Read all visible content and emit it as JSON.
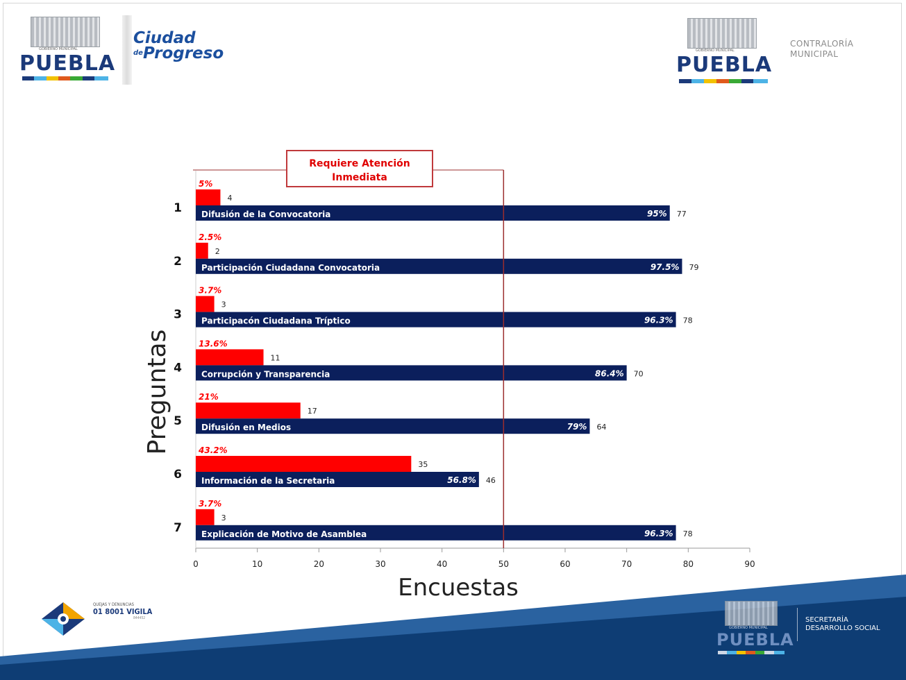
{
  "colors": {
    "red": "#ff0000",
    "navy": "#0b1f5c",
    "annotation_red": "#e00000",
    "annotation_border": "#c0393b",
    "vline": "#9b2d2d",
    "footer_blue": "#0e3d74"
  },
  "header": {
    "left_logo": {
      "gob": "GOBIERNO MUNICIPAL",
      "name": "PUEBLA"
    },
    "slogan": {
      "line1": "Ciudad",
      "de": "de",
      "line2": "Progreso"
    },
    "right_logo": {
      "gob": "GOBIERNO MUNICIPAL",
      "name": "PUEBLA"
    },
    "contraloria": {
      "line1": "CONTRALORÍA",
      "line2": "MUNICIPAL"
    }
  },
  "footer": {
    "hotline": {
      "small": "QUEJAS Y DENUNCIAS",
      "number": "01 8001 VIGILA",
      "sub": "844452"
    },
    "logo": {
      "gob": "GOBIERNO MUNICIPAL",
      "name": "PUEBLA"
    },
    "secretaria": {
      "line1": "SECRETARÍA",
      "line2": "DESARROLLO SOCIAL"
    }
  },
  "chart_data": {
    "type": "bar",
    "orientation": "horizontal",
    "xlabel": "Encuestas",
    "ylabel": "Preguntas",
    "xlim": [
      0,
      90
    ],
    "xticks": [
      0,
      10,
      20,
      30,
      40,
      50,
      60,
      70,
      80,
      90
    ],
    "grid": false,
    "reference_line": {
      "x": 50,
      "label_line1": "Requiere Atención",
      "label_line2": "Inmediata"
    },
    "categories": [
      "1",
      "2",
      "3",
      "4",
      "5",
      "6",
      "7"
    ],
    "category_labels": [
      "Difusión de la Convocatoria",
      "Participación Ciudadana Convocatoria",
      "Participacón Ciudadana Tríptico",
      "Corrupción y Transparencia",
      "Difusión en Medios",
      "Información  de la Secretaria",
      "Explicación de  Motivo de Asamblea"
    ],
    "series": [
      {
        "color": "#ff0000",
        "values": [
          4,
          2,
          3,
          11,
          17,
          35,
          3
        ],
        "percent_labels": [
          "5%",
          "2.5%",
          "3.7%",
          "13.6%",
          "21%",
          "43.2%",
          "3.7%"
        ]
      },
      {
        "color": "#0b1f5c",
        "values": [
          77,
          79,
          78,
          70,
          64,
          46,
          78
        ],
        "percent_labels": [
          "95%",
          "97.5%",
          "96.3%",
          "86.4%",
          "79%",
          "56.8%",
          "96.3%"
        ]
      }
    ]
  }
}
